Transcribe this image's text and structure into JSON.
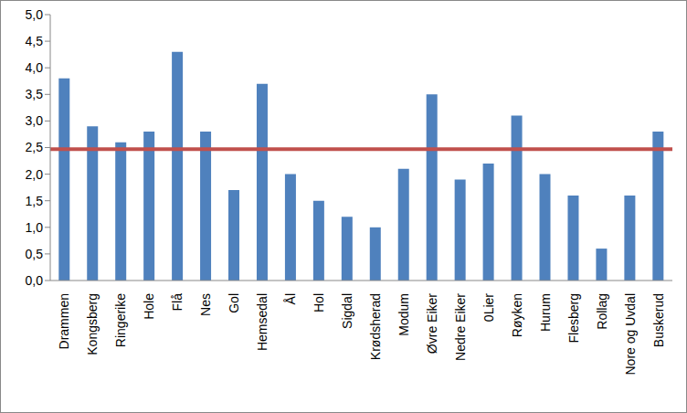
{
  "chart_data": {
    "type": "bar",
    "categories": [
      "Drammen",
      "Kongsberg",
      "Ringerike",
      "Hole",
      "Flå",
      "Nes",
      "Gol",
      "Hemsedal",
      "Ål",
      "Hol",
      "Sigdal",
      "Krødsherad",
      "Modum",
      "Øvre Eiker",
      "Nedre Eiker",
      "0Lier",
      "Røyken",
      "Hurum",
      "Flesberg",
      "Rollag",
      "Nore og Uvdal",
      "Buskerud"
    ],
    "values": [
      3.8,
      2.9,
      2.6,
      2.8,
      4.3,
      2.8,
      1.7,
      3.7,
      2.0,
      1.5,
      1.2,
      1.0,
      2.1,
      3.5,
      1.9,
      2.2,
      3.1,
      2.0,
      1.6,
      0.6,
      1.6,
      2.8
    ],
    "color": "#4f81bd",
    "reference_line": 2.47,
    "reference_line_color": "#c0504d",
    "ylim": [
      0,
      5
    ],
    "yticks": [
      {
        "value": 0,
        "label": "0,0"
      },
      {
        "value": 0.5,
        "label": "0,5"
      },
      {
        "value": 1,
        "label": "1,0"
      },
      {
        "value": 1.5,
        "label": "1,5"
      },
      {
        "value": 2,
        "label": "2,0"
      },
      {
        "value": 2.5,
        "label": "2,5"
      },
      {
        "value": 3,
        "label": "3,0"
      },
      {
        "value": 3.5,
        "label": "3,5"
      },
      {
        "value": 4,
        "label": "4,0"
      },
      {
        "value": 4.5,
        "label": "4,5"
      },
      {
        "value": 5,
        "label": "5,0"
      }
    ],
    "grid": false
  }
}
